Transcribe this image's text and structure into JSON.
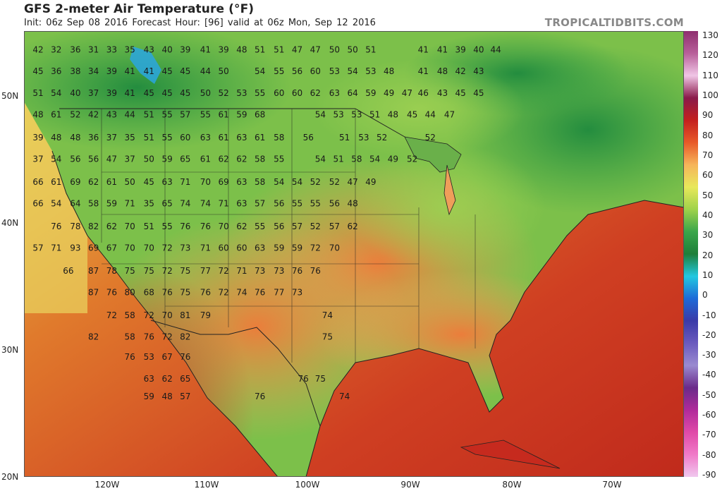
{
  "header": {
    "title": "GFS 2-meter Air Temperature (°F)",
    "subtitle": "Init: 06z Sep 08 2016   Forecast Hour: [96]   valid at 06z Mon, Sep 12 2016",
    "brand": "TROPICALTIDBITS.COM"
  },
  "axes": {
    "lon_labels": [
      "120W",
      "110W",
      "100W",
      "90W",
      "80W",
      "70W"
    ],
    "lat_labels": [
      "50N",
      "40N",
      "30N",
      "20N"
    ]
  },
  "colorbar": {
    "unit": "°F",
    "labels": [
      "130",
      "120",
      "110",
      "100",
      "90",
      "80",
      "70",
      "60",
      "50",
      "40",
      "30",
      "20",
      "10",
      "0",
      "-10",
      "-20",
      "-30",
      "-40",
      "-50",
      "-60",
      "-70",
      "-80",
      "-90"
    ]
  },
  "colors": {
    "hot": "#c62a1e",
    "warm": "#ef8a3c",
    "mild": "#a8d24a",
    "cool": "#3aa64a",
    "cold": "#1e7f3a",
    "ocean": "#cf4a24"
  },
  "temperatures": [
    {
      "v": "42",
      "lon": -126.6,
      "lat": 53.4
    },
    {
      "v": "32",
      "lon": -124.8,
      "lat": 53.4
    },
    {
      "v": "36",
      "lon": -122.9,
      "lat": 53.4
    },
    {
      "v": "31",
      "lon": -121.1,
      "lat": 53.4
    },
    {
      "v": "33",
      "lon": -119.3,
      "lat": 53.4
    },
    {
      "v": "35",
      "lon": -117.5,
      "lat": 53.4
    },
    {
      "v": "43",
      "lon": -115.6,
      "lat": 53.4
    },
    {
      "v": "40",
      "lon": -113.8,
      "lat": 53.4
    },
    {
      "v": "39",
      "lon": -112.0,
      "lat": 53.4
    },
    {
      "v": "41",
      "lon": -110.0,
      "lat": 53.4
    },
    {
      "v": "39",
      "lon": -108.2,
      "lat": 53.4
    },
    {
      "v": "48",
      "lon": -106.4,
      "lat": 53.4
    },
    {
      "v": "51",
      "lon": -104.6,
      "lat": 53.4
    },
    {
      "v": "51",
      "lon": -102.7,
      "lat": 53.4
    },
    {
      "v": "47",
      "lon": -100.9,
      "lat": 53.4
    },
    {
      "v": "47",
      "lon": -99.1,
      "lat": 53.4
    },
    {
      "v": "50",
      "lon": -97.2,
      "lat": 53.4
    },
    {
      "v": "50",
      "lon": -95.4,
      "lat": 53.4
    },
    {
      "v": "51",
      "lon": -93.6,
      "lat": 53.4
    },
    {
      "v": "41",
      "lon": -88.4,
      "lat": 53.4
    },
    {
      "v": "41",
      "lon": -86.5,
      "lat": 53.4
    },
    {
      "v": "39",
      "lon": -84.7,
      "lat": 53.4
    },
    {
      "v": "40",
      "lon": -82.9,
      "lat": 53.4
    },
    {
      "v": "44",
      "lon": -81.2,
      "lat": 53.4
    },
    {
      "v": "45",
      "lon": -126.6,
      "lat": 51.7
    },
    {
      "v": "36",
      "lon": -124.8,
      "lat": 51.7
    },
    {
      "v": "38",
      "lon": -122.9,
      "lat": 51.7
    },
    {
      "v": "34",
      "lon": -121.1,
      "lat": 51.7
    },
    {
      "v": "39",
      "lon": -119.3,
      "lat": 51.7
    },
    {
      "v": "41",
      "lon": -117.5,
      "lat": 51.7
    },
    {
      "v": "41",
      "lon": -115.6,
      "lat": 51.7
    },
    {
      "v": "45",
      "lon": -113.8,
      "lat": 51.7
    },
    {
      "v": "45",
      "lon": -112.0,
      "lat": 51.7
    },
    {
      "v": "44",
      "lon": -110.0,
      "lat": 51.7
    },
    {
      "v": "50",
      "lon": -108.2,
      "lat": 51.7
    },
    {
      "v": "54",
      "lon": -104.6,
      "lat": 51.7
    },
    {
      "v": "55",
      "lon": -102.7,
      "lat": 51.7
    },
    {
      "v": "56",
      "lon": -100.9,
      "lat": 51.7
    },
    {
      "v": "60",
      "lon": -99.1,
      "lat": 51.7
    },
    {
      "v": "53",
      "lon": -97.2,
      "lat": 51.7
    },
    {
      "v": "54",
      "lon": -95.4,
      "lat": 51.7
    },
    {
      "v": "53",
      "lon": -93.6,
      "lat": 51.7
    },
    {
      "v": "48",
      "lon": -91.8,
      "lat": 51.7
    },
    {
      "v": "41",
      "lon": -88.4,
      "lat": 51.7
    },
    {
      "v": "48",
      "lon": -86.5,
      "lat": 51.7
    },
    {
      "v": "42",
      "lon": -84.7,
      "lat": 51.7
    },
    {
      "v": "43",
      "lon": -82.9,
      "lat": 51.7
    },
    {
      "v": "51",
      "lon": -126.6,
      "lat": 50.0
    },
    {
      "v": "54",
      "lon": -124.8,
      "lat": 50.0
    },
    {
      "v": "40",
      "lon": -122.9,
      "lat": 50.0
    },
    {
      "v": "37",
      "lon": -121.1,
      "lat": 50.0
    },
    {
      "v": "39",
      "lon": -119.3,
      "lat": 50.0
    },
    {
      "v": "41",
      "lon": -117.5,
      "lat": 50.0
    },
    {
      "v": "45",
      "lon": -115.6,
      "lat": 50.0
    },
    {
      "v": "45",
      "lon": -113.8,
      "lat": 50.0
    },
    {
      "v": "45",
      "lon": -112.0,
      "lat": 50.0
    },
    {
      "v": "50",
      "lon": -110.0,
      "lat": 50.0
    },
    {
      "v": "52",
      "lon": -108.2,
      "lat": 50.0
    },
    {
      "v": "53",
      "lon": -106.4,
      "lat": 50.0
    },
    {
      "v": "55",
      "lon": -104.6,
      "lat": 50.0
    },
    {
      "v": "60",
      "lon": -102.7,
      "lat": 50.0
    },
    {
      "v": "60",
      "lon": -100.9,
      "lat": 50.0
    },
    {
      "v": "62",
      "lon": -99.1,
      "lat": 50.0
    },
    {
      "v": "63",
      "lon": -97.2,
      "lat": 50.0
    },
    {
      "v": "64",
      "lon": -95.4,
      "lat": 50.0
    },
    {
      "v": "59",
      "lon": -93.6,
      "lat": 50.0
    },
    {
      "v": "49",
      "lon": -91.8,
      "lat": 50.0
    },
    {
      "v": "47",
      "lon": -90.0,
      "lat": 50.0
    },
    {
      "v": "46",
      "lon": -88.4,
      "lat": 50.0
    },
    {
      "v": "43",
      "lon": -86.5,
      "lat": 50.0
    },
    {
      "v": "45",
      "lon": -84.7,
      "lat": 50.0
    },
    {
      "v": "45",
      "lon": -82.9,
      "lat": 50.0
    },
    {
      "v": "48",
      "lon": -126.6,
      "lat": 48.3
    },
    {
      "v": "61",
      "lon": -124.8,
      "lat": 48.3
    },
    {
      "v": "52",
      "lon": -122.9,
      "lat": 48.3
    },
    {
      "v": "42",
      "lon": -121.1,
      "lat": 48.3
    },
    {
      "v": "43",
      "lon": -119.3,
      "lat": 48.3
    },
    {
      "v": "44",
      "lon": -117.5,
      "lat": 48.3
    },
    {
      "v": "51",
      "lon": -115.6,
      "lat": 48.3
    },
    {
      "v": "55",
      "lon": -113.8,
      "lat": 48.3
    },
    {
      "v": "57",
      "lon": -112.0,
      "lat": 48.3
    },
    {
      "v": "55",
      "lon": -110.0,
      "lat": 48.3
    },
    {
      "v": "61",
      "lon": -108.2,
      "lat": 48.3
    },
    {
      "v": "59",
      "lon": -106.4,
      "lat": 48.3
    },
    {
      "v": "68",
      "lon": -104.6,
      "lat": 48.3
    },
    {
      "v": "54",
      "lon": -98.6,
      "lat": 48.3
    },
    {
      "v": "53",
      "lon": -96.8,
      "lat": 48.3
    },
    {
      "v": "53",
      "lon": -95.0,
      "lat": 48.3
    },
    {
      "v": "51",
      "lon": -93.2,
      "lat": 48.3
    },
    {
      "v": "48",
      "lon": -91.4,
      "lat": 48.3
    },
    {
      "v": "45",
      "lon": -89.5,
      "lat": 48.3
    },
    {
      "v": "44",
      "lon": -87.7,
      "lat": 48.3
    },
    {
      "v": "47",
      "lon": -85.8,
      "lat": 48.3
    },
    {
      "v": "39",
      "lon": -126.6,
      "lat": 46.5
    },
    {
      "v": "48",
      "lon": -124.8,
      "lat": 46.5
    },
    {
      "v": "48",
      "lon": -122.9,
      "lat": 46.5
    },
    {
      "v": "36",
      "lon": -121.1,
      "lat": 46.5
    },
    {
      "v": "37",
      "lon": -119.3,
      "lat": 46.5
    },
    {
      "v": "35",
      "lon": -117.5,
      "lat": 46.5
    },
    {
      "v": "51",
      "lon": -115.6,
      "lat": 46.5
    },
    {
      "v": "55",
      "lon": -113.8,
      "lat": 46.5
    },
    {
      "v": "60",
      "lon": -112.0,
      "lat": 46.5
    },
    {
      "v": "63",
      "lon": -110.0,
      "lat": 46.5
    },
    {
      "v": "61",
      "lon": -108.2,
      "lat": 46.5
    },
    {
      "v": "63",
      "lon": -106.4,
      "lat": 46.5
    },
    {
      "v": "61",
      "lon": -104.6,
      "lat": 46.5
    },
    {
      "v": "58",
      "lon": -102.7,
      "lat": 46.5
    },
    {
      "v": "56",
      "lon": -99.8,
      "lat": 46.5
    },
    {
      "v": "51",
      "lon": -96.2,
      "lat": 46.5
    },
    {
      "v": "53",
      "lon": -94.3,
      "lat": 46.5
    },
    {
      "v": "52",
      "lon": -92.5,
      "lat": 46.5
    },
    {
      "v": "52",
      "lon": -87.7,
      "lat": 46.5
    },
    {
      "v": "37",
      "lon": -126.6,
      "lat": 44.8
    },
    {
      "v": "54",
      "lon": -124.8,
      "lat": 44.8
    },
    {
      "v": "56",
      "lon": -122.9,
      "lat": 44.8
    },
    {
      "v": "56",
      "lon": -121.1,
      "lat": 44.8
    },
    {
      "v": "47",
      "lon": -119.3,
      "lat": 44.8
    },
    {
      "v": "37",
      "lon": -117.5,
      "lat": 44.8
    },
    {
      "v": "50",
      "lon": -115.6,
      "lat": 44.8
    },
    {
      "v": "59",
      "lon": -113.8,
      "lat": 44.8
    },
    {
      "v": "65",
      "lon": -112.0,
      "lat": 44.8
    },
    {
      "v": "61",
      "lon": -110.0,
      "lat": 44.8
    },
    {
      "v": "62",
      "lon": -108.2,
      "lat": 44.8
    },
    {
      "v": "62",
      "lon": -106.4,
      "lat": 44.8
    },
    {
      "v": "58",
      "lon": -104.6,
      "lat": 44.8
    },
    {
      "v": "55",
      "lon": -102.7,
      "lat": 44.8
    },
    {
      "v": "54",
      "lon": -98.6,
      "lat": 44.8
    },
    {
      "v": "51",
      "lon": -96.8,
      "lat": 44.8
    },
    {
      "v": "58",
      "lon": -95.0,
      "lat": 44.8
    },
    {
      "v": "54",
      "lon": -93.2,
      "lat": 44.8
    },
    {
      "v": "49",
      "lon": -91.4,
      "lat": 44.8
    },
    {
      "v": "52",
      "lon": -89.5,
      "lat": 44.8
    },
    {
      "v": "66",
      "lon": -126.6,
      "lat": 43.0
    },
    {
      "v": "61",
      "lon": -124.8,
      "lat": 43.0
    },
    {
      "v": "69",
      "lon": -122.9,
      "lat": 43.0
    },
    {
      "v": "62",
      "lon": -121.1,
      "lat": 43.0
    },
    {
      "v": "61",
      "lon": -119.3,
      "lat": 43.0
    },
    {
      "v": "50",
      "lon": -117.5,
      "lat": 43.0
    },
    {
      "v": "45",
      "lon": -115.6,
      "lat": 43.0
    },
    {
      "v": "63",
      "lon": -113.8,
      "lat": 43.0
    },
    {
      "v": "71",
      "lon": -112.0,
      "lat": 43.0
    },
    {
      "v": "70",
      "lon": -110.0,
      "lat": 43.0
    },
    {
      "v": "69",
      "lon": -108.2,
      "lat": 43.0
    },
    {
      "v": "63",
      "lon": -106.4,
      "lat": 43.0
    },
    {
      "v": "58",
      "lon": -104.6,
      "lat": 43.0
    },
    {
      "v": "54",
      "lon": -102.7,
      "lat": 43.0
    },
    {
      "v": "54",
      "lon": -100.9,
      "lat": 43.0
    },
    {
      "v": "52",
      "lon": -99.1,
      "lat": 43.0
    },
    {
      "v": "52",
      "lon": -97.2,
      "lat": 43.0
    },
    {
      "v": "47",
      "lon": -95.4,
      "lat": 43.0
    },
    {
      "v": "49",
      "lon": -93.6,
      "lat": 43.0
    },
    {
      "v": "66",
      "lon": -126.6,
      "lat": 41.3
    },
    {
      "v": "54",
      "lon": -124.8,
      "lat": 41.3
    },
    {
      "v": "64",
      "lon": -122.9,
      "lat": 41.3
    },
    {
      "v": "58",
      "lon": -121.1,
      "lat": 41.3
    },
    {
      "v": "59",
      "lon": -119.3,
      "lat": 41.3
    },
    {
      "v": "71",
      "lon": -117.5,
      "lat": 41.3
    },
    {
      "v": "35",
      "lon": -115.6,
      "lat": 41.3
    },
    {
      "v": "65",
      "lon": -113.8,
      "lat": 41.3
    },
    {
      "v": "74",
      "lon": -112.0,
      "lat": 41.3
    },
    {
      "v": "74",
      "lon": -110.0,
      "lat": 41.3
    },
    {
      "v": "71",
      "lon": -108.2,
      "lat": 41.3
    },
    {
      "v": "63",
      "lon": -106.4,
      "lat": 41.3
    },
    {
      "v": "57",
      "lon": -104.6,
      "lat": 41.3
    },
    {
      "v": "56",
      "lon": -102.7,
      "lat": 41.3
    },
    {
      "v": "55",
      "lon": -100.9,
      "lat": 41.3
    },
    {
      "v": "55",
      "lon": -99.1,
      "lat": 41.3
    },
    {
      "v": "56",
      "lon": -97.2,
      "lat": 41.3
    },
    {
      "v": "48",
      "lon": -95.4,
      "lat": 41.3
    },
    {
      "v": "76",
      "lon": -124.8,
      "lat": 39.5
    },
    {
      "v": "78",
      "lon": -122.9,
      "lat": 39.5
    },
    {
      "v": "82",
      "lon": -121.1,
      "lat": 39.5
    },
    {
      "v": "62",
      "lon": -119.3,
      "lat": 39.5
    },
    {
      "v": "70",
      "lon": -117.5,
      "lat": 39.5
    },
    {
      "v": "51",
      "lon": -115.6,
      "lat": 39.5
    },
    {
      "v": "55",
      "lon": -113.8,
      "lat": 39.5
    },
    {
      "v": "76",
      "lon": -112.0,
      "lat": 39.5
    },
    {
      "v": "76",
      "lon": -110.0,
      "lat": 39.5
    },
    {
      "v": "70",
      "lon": -108.2,
      "lat": 39.5
    },
    {
      "v": "62",
      "lon": -106.4,
      "lat": 39.5
    },
    {
      "v": "55",
      "lon": -104.6,
      "lat": 39.5
    },
    {
      "v": "56",
      "lon": -102.7,
      "lat": 39.5
    },
    {
      "v": "57",
      "lon": -100.9,
      "lat": 39.5
    },
    {
      "v": "52",
      "lon": -99.1,
      "lat": 39.5
    },
    {
      "v": "57",
      "lon": -97.2,
      "lat": 39.5
    },
    {
      "v": "62",
      "lon": -95.4,
      "lat": 39.5
    },
    {
      "v": "57",
      "lon": -126.6,
      "lat": 37.8
    },
    {
      "v": "71",
      "lon": -124.8,
      "lat": 37.8
    },
    {
      "v": "93",
      "lon": -122.9,
      "lat": 37.8
    },
    {
      "v": "69",
      "lon": -121.1,
      "lat": 37.8
    },
    {
      "v": "67",
      "lon": -119.3,
      "lat": 37.8
    },
    {
      "v": "70",
      "lon": -117.5,
      "lat": 37.8
    },
    {
      "v": "70",
      "lon": -115.6,
      "lat": 37.8
    },
    {
      "v": "72",
      "lon": -113.8,
      "lat": 37.8
    },
    {
      "v": "73",
      "lon": -112.0,
      "lat": 37.8
    },
    {
      "v": "71",
      "lon": -110.0,
      "lat": 37.8
    },
    {
      "v": "60",
      "lon": -108.2,
      "lat": 37.8
    },
    {
      "v": "60",
      "lon": -106.4,
      "lat": 37.8
    },
    {
      "v": "63",
      "lon": -104.6,
      "lat": 37.8
    },
    {
      "v": "59",
      "lon": -102.7,
      "lat": 37.8
    },
    {
      "v": "59",
      "lon": -100.9,
      "lat": 37.8
    },
    {
      "v": "72",
      "lon": -99.1,
      "lat": 37.8
    },
    {
      "v": "70",
      "lon": -97.2,
      "lat": 37.8
    },
    {
      "v": "66",
      "lon": -123.6,
      "lat": 36.0
    },
    {
      "v": "87",
      "lon": -121.1,
      "lat": 36.0
    },
    {
      "v": "78",
      "lon": -119.3,
      "lat": 36.0
    },
    {
      "v": "75",
      "lon": -117.5,
      "lat": 36.0
    },
    {
      "v": "75",
      "lon": -115.6,
      "lat": 36.0
    },
    {
      "v": "72",
      "lon": -113.8,
      "lat": 36.0
    },
    {
      "v": "75",
      "lon": -112.0,
      "lat": 36.0
    },
    {
      "v": "77",
      "lon": -110.0,
      "lat": 36.0
    },
    {
      "v": "72",
      "lon": -108.2,
      "lat": 36.0
    },
    {
      "v": "71",
      "lon": -106.4,
      "lat": 36.0
    },
    {
      "v": "73",
      "lon": -104.6,
      "lat": 36.0
    },
    {
      "v": "73",
      "lon": -102.7,
      "lat": 36.0
    },
    {
      "v": "76",
      "lon": -100.9,
      "lat": 36.0
    },
    {
      "v": "76",
      "lon": -99.1,
      "lat": 36.0
    },
    {
      "v": "87",
      "lon": -121.1,
      "lat": 34.3
    },
    {
      "v": "76",
      "lon": -119.3,
      "lat": 34.3
    },
    {
      "v": "80",
      "lon": -117.5,
      "lat": 34.3
    },
    {
      "v": "68",
      "lon": -115.6,
      "lat": 34.3
    },
    {
      "v": "76",
      "lon": -113.8,
      "lat": 34.3
    },
    {
      "v": "75",
      "lon": -112.0,
      "lat": 34.3
    },
    {
      "v": "76",
      "lon": -110.0,
      "lat": 34.3
    },
    {
      "v": "72",
      "lon": -108.2,
      "lat": 34.3
    },
    {
      "v": "74",
      "lon": -106.4,
      "lat": 34.3
    },
    {
      "v": "76",
      "lon": -104.6,
      "lat": 34.3
    },
    {
      "v": "77",
      "lon": -102.7,
      "lat": 34.3
    },
    {
      "v": "73",
      "lon": -100.9,
      "lat": 34.3
    },
    {
      "v": "72",
      "lon": -119.3,
      "lat": 32.5
    },
    {
      "v": "58",
      "lon": -117.5,
      "lat": 32.5
    },
    {
      "v": "72",
      "lon": -115.6,
      "lat": 32.5
    },
    {
      "v": "70",
      "lon": -113.8,
      "lat": 32.5
    },
    {
      "v": "81",
      "lon": -112.0,
      "lat": 32.5
    },
    {
      "v": "79",
      "lon": -110.0,
      "lat": 32.5
    },
    {
      "v": "74",
      "lon": -97.9,
      "lat": 32.5
    },
    {
      "v": "82",
      "lon": -121.1,
      "lat": 30.8
    },
    {
      "v": "58",
      "lon": -117.5,
      "lat": 30.8
    },
    {
      "v": "76",
      "lon": -115.6,
      "lat": 30.8
    },
    {
      "v": "72",
      "lon": -113.8,
      "lat": 30.8
    },
    {
      "v": "82",
      "lon": -112.0,
      "lat": 30.8
    },
    {
      "v": "75",
      "lon": -97.9,
      "lat": 30.8
    },
    {
      "v": "76",
      "lon": -117.5,
      "lat": 29.2
    },
    {
      "v": "53",
      "lon": -115.6,
      "lat": 29.2
    },
    {
      "v": "67",
      "lon": -113.8,
      "lat": 29.2
    },
    {
      "v": "76",
      "lon": -112.0,
      "lat": 29.2
    },
    {
      "v": "63",
      "lon": -115.6,
      "lat": 27.5
    },
    {
      "v": "62",
      "lon": -113.8,
      "lat": 27.5
    },
    {
      "v": "65",
      "lon": -112.0,
      "lat": 27.5
    },
    {
      "v": "76",
      "lon": -100.3,
      "lat": 27.5
    },
    {
      "v": "75",
      "lon": -98.6,
      "lat": 27.5
    },
    {
      "v": "59",
      "lon": -115.6,
      "lat": 26.1
    },
    {
      "v": "48",
      "lon": -113.8,
      "lat": 26.1
    },
    {
      "v": "57",
      "lon": -112.0,
      "lat": 26.1
    },
    {
      "v": "76",
      "lon": -104.6,
      "lat": 26.1
    },
    {
      "v": "74",
      "lon": -96.2,
      "lat": 26.1
    }
  ]
}
